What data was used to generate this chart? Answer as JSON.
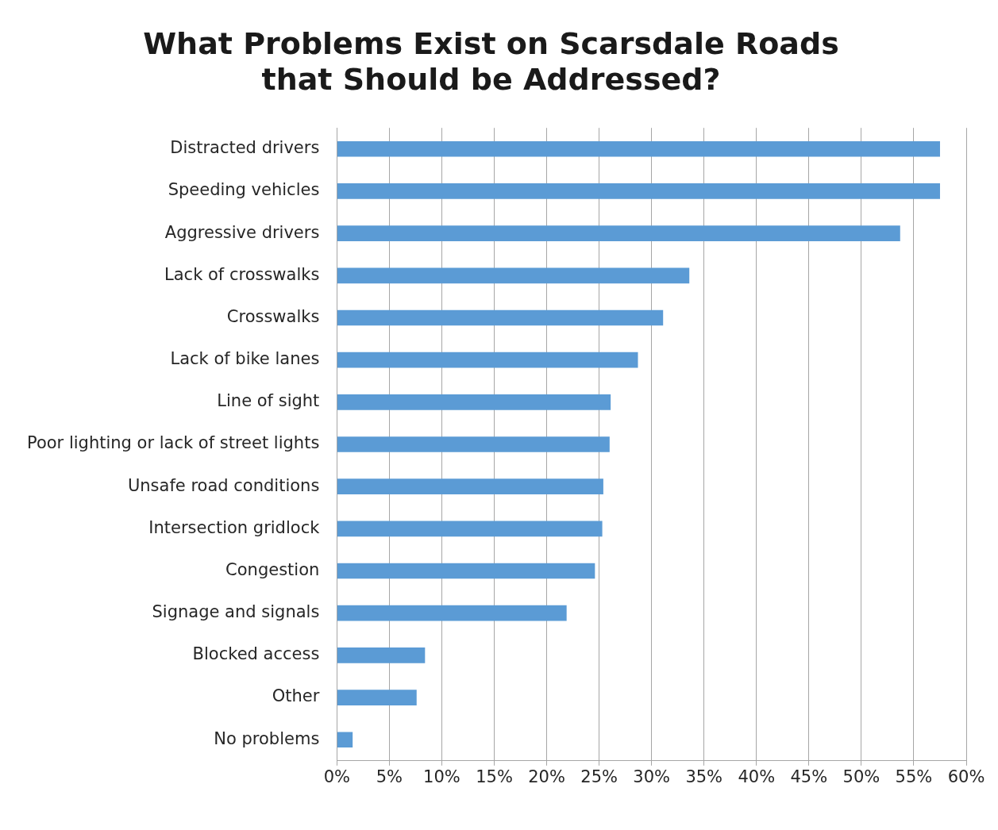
{
  "chart_data": {
    "type": "bar",
    "orientation": "horizontal",
    "title": "What Problems Exist on Scarsdale Roads that Should be Addressed?",
    "categories": [
      "Distracted drivers",
      "Speeding vehicles",
      "Aggressive drivers",
      "Lack of crosswalks",
      "Crosswalks",
      "Lack of bike lanes",
      "Line of sight",
      "Poor lighting or lack of street lights",
      "Unsafe road conditions",
      "Intersection gridlock",
      "Congestion",
      "Signage and signals",
      "Blocked access",
      "Other",
      "No problems"
    ],
    "values": [
      57.5,
      57.5,
      53.7,
      33.6,
      31.1,
      28.7,
      26.1,
      26.0,
      25.4,
      25.3,
      24.6,
      21.9,
      8.4,
      7.6,
      1.5
    ],
    "color": "#5b9bd5",
    "xlim": [
      0,
      60
    ],
    "xticks": [
      {
        "value": 0,
        "label": "0%"
      },
      {
        "value": 5,
        "label": "5%"
      },
      {
        "value": 10,
        "label": "10%"
      },
      {
        "value": 15,
        "label": "15%"
      },
      {
        "value": 20,
        "label": "20%"
      },
      {
        "value": 25,
        "label": "25%"
      },
      {
        "value": 30,
        "label": "30%"
      },
      {
        "value": 35,
        "label": "35%"
      },
      {
        "value": 40,
        "label": "40%"
      },
      {
        "value": 45,
        "label": "45%"
      },
      {
        "value": 50,
        "label": "50%"
      },
      {
        "value": 55,
        "label": "55%"
      },
      {
        "value": 60,
        "label": "60%"
      }
    ],
    "grid": "x"
  }
}
